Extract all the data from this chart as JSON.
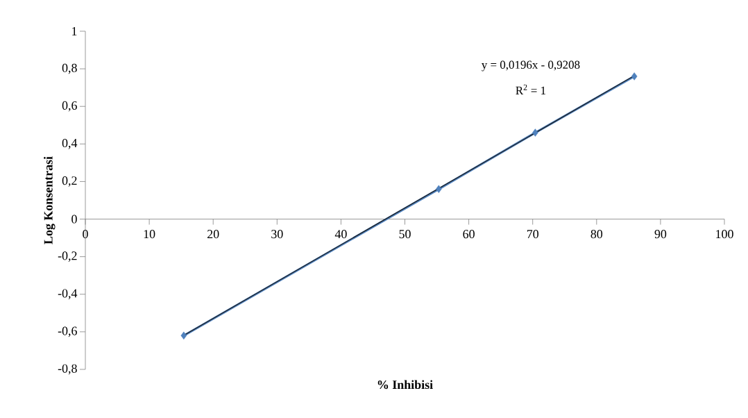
{
  "chart_data": {
    "type": "line",
    "xlabel": "% Inhibisi",
    "ylabel": "Log Konsentrasi",
    "series": [
      {
        "color": "#4f81bd",
        "x": [
          15.4,
          55.3,
          70.4,
          85.9
        ],
        "values": [
          -0.62,
          0.16,
          0.46,
          0.76
        ]
      },
      {
        "type": "line",
        "color": "#1a1a1a",
        "marker": "none",
        "x": [
          15.4,
          85.9
        ],
        "values": [
          -0.619,
          0.763
        ]
      }
    ],
    "xlim": [
      0,
      100
    ],
    "xticks": [
      0,
      10,
      20,
      30,
      40,
      50,
      60,
      70,
      80,
      90,
      100
    ],
    "ylim": [
      -0.8,
      1
    ],
    "yticks": [
      {
        "value": -0.8,
        "label": "-0,8"
      },
      {
        "value": -0.6,
        "label": "-0,6"
      },
      {
        "value": -0.4,
        "label": "-0,4"
      },
      {
        "value": -0.2,
        "label": "-0,2"
      },
      {
        "value": 0,
        "label": "0"
      },
      {
        "value": 0.2,
        "label": "0,2"
      },
      {
        "value": 0.4,
        "label": "0,4"
      },
      {
        "value": 0.6,
        "label": "0,6"
      },
      {
        "value": 0.8,
        "label": "0,8"
      },
      {
        "value": 1,
        "label": "1"
      }
    ],
    "marker": "diamond",
    "annotations": [
      "y = 0,0196x - 0,9208",
      "R$^{2}$ = 1"
    ]
  }
}
